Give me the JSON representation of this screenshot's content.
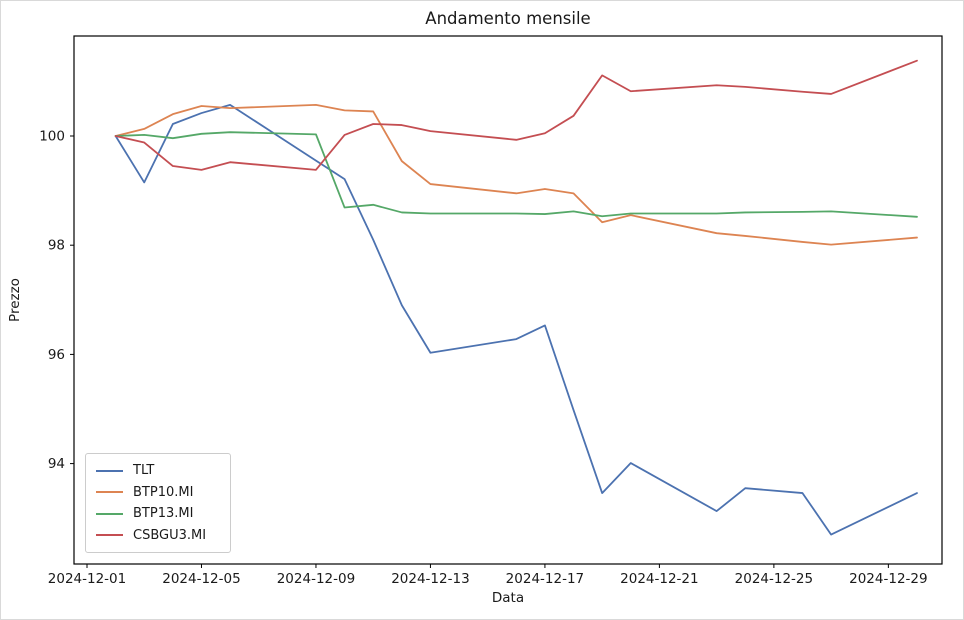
{
  "figure": {
    "title": "Andamento mensile",
    "xlabel": "Data",
    "ylabel": "Prezzo"
  },
  "legend": {
    "entries": [
      "TLT",
      "BTP10.MI",
      "BTP13.MI",
      "CSBGU3.MI"
    ],
    "position": "lower left"
  },
  "chart_data": {
    "type": "line",
    "title": "Andamento mensile",
    "xlabel": "Data",
    "ylabel": "Prezzo",
    "grid": false,
    "legend_position": "lower left",
    "x_tick_labels": [
      "2024-12-01",
      "2024-12-05",
      "2024-12-09",
      "2024-12-13",
      "2024-12-17",
      "2024-12-21",
      "2024-12-25",
      "2024-12-29"
    ],
    "y_ticks": [
      94,
      96,
      98,
      100
    ],
    "ylim": [
      92.15,
      101.85
    ],
    "x": [
      "2024-12-02",
      "2024-12-03",
      "2024-12-04",
      "2024-12-05",
      "2024-12-06",
      "2024-12-09",
      "2024-12-10",
      "2024-12-11",
      "2024-12-12",
      "2024-12-13",
      "2024-12-16",
      "2024-12-17",
      "2024-12-18",
      "2024-12-19",
      "2024-12-20",
      "2024-12-23",
      "2024-12-24",
      "2024-12-26",
      "2024-12-27",
      "2024-12-30"
    ],
    "series": [
      {
        "name": "TLT",
        "color": "#4C72B0",
        "values": [
          100.0,
          99.15,
          100.22,
          100.42,
          100.57,
          99.55,
          99.21,
          98.1,
          96.9,
          96.03,
          96.28,
          96.53,
          94.98,
          93.46,
          94.01,
          93.13,
          93.55,
          93.46,
          92.7,
          93.46
        ]
      },
      {
        "name": "BTP10.MI",
        "color": "#DD8452",
        "values": [
          100.0,
          100.13,
          100.4,
          100.55,
          100.51,
          100.57,
          100.47,
          100.45,
          99.54,
          99.12,
          98.95,
          99.03,
          98.95,
          98.42,
          98.55,
          98.22,
          98.17,
          98.06,
          98.01,
          98.14
        ]
      },
      {
        "name": "BTP13.MI",
        "color": "#55A868",
        "values": [
          100.0,
          100.02,
          99.96,
          100.04,
          100.07,
          100.03,
          98.69,
          98.74,
          98.6,
          98.58,
          98.58,
          98.57,
          98.62,
          98.53,
          98.58,
          98.58,
          98.6,
          98.61,
          98.62,
          98.52
        ]
      },
      {
        "name": "CSBGU3.MI",
        "color": "#C44E52",
        "values": [
          100.0,
          99.88,
          99.45,
          99.38,
          99.52,
          99.38,
          100.02,
          100.22,
          100.2,
          100.09,
          99.93,
          100.05,
          100.37,
          101.11,
          100.82,
          100.93,
          100.9,
          100.81,
          100.77,
          101.38
        ]
      }
    ]
  }
}
